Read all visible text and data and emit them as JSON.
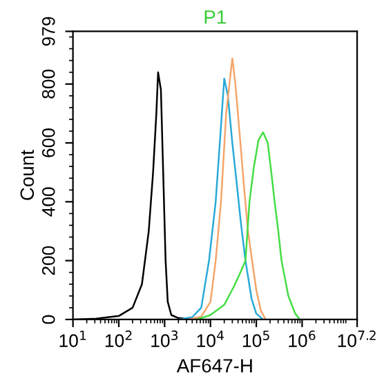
{
  "chart_data": {
    "type": "line",
    "title": "P1",
    "xlabel": "AF647-H",
    "ylabel": "Count",
    "log": "x",
    "grid": false,
    "marker": "none",
    "line_style": "solid",
    "xlim": [
      10,
      15848932
    ],
    "xticks": [
      {
        "value": 10,
        "label": "10$^{1}$"
      },
      {
        "value": 100,
        "label": "10$^{2}$"
      },
      {
        "value": 1000,
        "label": "10$^{3}$"
      },
      {
        "value": 10000,
        "label": "10$^{4}$"
      },
      {
        "value": 100000,
        "label": "10$^{5}$"
      },
      {
        "value": 1000000,
        "label": "10$^{6}$"
      },
      {
        "value": 15848932,
        "label": "10$^{7.2}$"
      }
    ],
    "ylim": [
      0,
      979
    ],
    "yticks": [
      0,
      200,
      400,
      600,
      800,
      979
    ],
    "series": [
      {
        "color": "#000000",
        "x": [
          10,
          32,
          100,
          200,
          320,
          450,
          560,
          660,
          720,
          830,
          930,
          1050,
          1170,
          1400,
          2000,
          3200,
          5000
        ],
        "values": [
          0,
          3,
          12,
          40,
          120,
          300,
          500,
          700,
          840,
          780,
          500,
          200,
          60,
          15,
          5,
          2,
          0
        ]
      },
      {
        "color": "#29a9d8",
        "x": [
          2000,
          4000,
          6300,
          9300,
          13000,
          16000,
          20000,
          24000,
          30000,
          37000,
          46000,
          58000,
          79000,
          100000,
          140000
        ],
        "values": [
          0,
          8,
          40,
          200,
          400,
          600,
          819,
          760,
          600,
          470,
          330,
          200,
          70,
          20,
          0
        ]
      },
      {
        "color": "#f5a56a",
        "x": [
          3200,
          6300,
          10000,
          13000,
          17000,
          22000,
          30000,
          35000,
          45000,
          54000,
          66000,
          81000,
          100000,
          126000,
          160000
        ],
        "values": [
          0,
          10,
          60,
          200,
          400,
          700,
          887,
          800,
          600,
          450,
          300,
          200,
          100,
          30,
          0
        ]
      },
      {
        "color": "#44dd44",
        "x": [
          5000,
          10000,
          20000,
          32000,
          45000,
          58000,
          71000,
          89000,
          112000,
          141000,
          178000,
          224000,
          251000,
          302000,
          355000,
          500000,
          708000,
          891000
        ],
        "values": [
          0,
          15,
          50,
          110,
          160,
          200,
          400,
          520,
          610,
          636,
          600,
          470,
          400,
          300,
          200,
          80,
          20,
          0
        ]
      }
    ]
  }
}
